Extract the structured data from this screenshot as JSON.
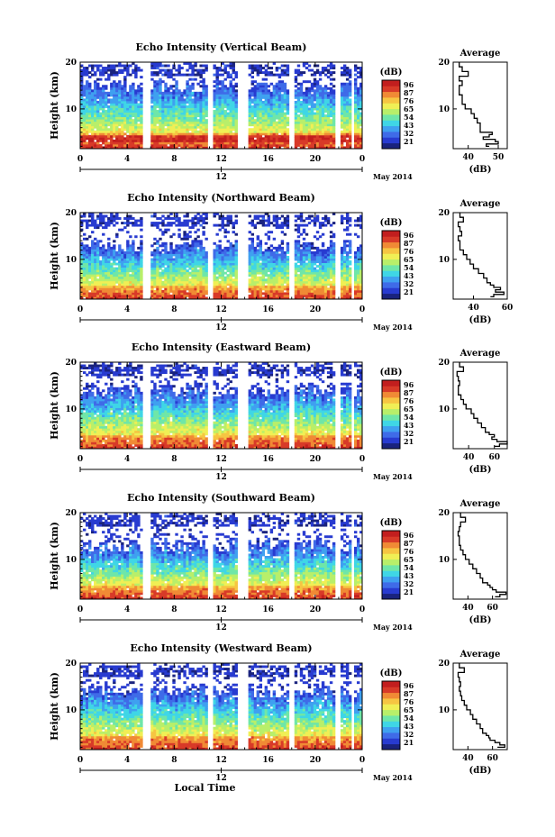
{
  "figure": {
    "xlabel": "Local Time",
    "date_label": "May 2014",
    "day_label": "12",
    "colorbar_unit": "(dB)",
    "colorbar_ticks": [
      "96",
      "87",
      "76",
      "65",
      "54",
      "43",
      "32",
      "21"
    ],
    "average_title": "Average",
    "average_xunit": "(dB)",
    "colors": {
      "scale": [
        "#1a237e",
        "#283bd0",
        "#3f6be8",
        "#3fa0f0",
        "#3fd6e6",
        "#6fe6a8",
        "#b8ef6a",
        "#f0ef55",
        "#f6c542",
        "#f08a35",
        "#d83a28",
        "#c21e1e"
      ]
    }
  },
  "chart_data": [
    {
      "type": "heatmap",
      "title": "Echo Intensity (Vertical Beam)",
      "ylabel": "Height (km)",
      "xlabel": "",
      "x_ticks": [
        "0",
        "4",
        "8",
        "12",
        "16",
        "20",
        "0"
      ],
      "y_ticks": [
        "20",
        "10"
      ],
      "xlim": [
        0,
        24
      ],
      "ylim": [
        1.5,
        20
      ],
      "gaps_hours": [
        [
          5.3,
          6.1
        ],
        [
          10.9,
          11.3
        ],
        [
          13.4,
          14.3
        ],
        [
          17.8,
          18.2
        ],
        [
          21.8,
          22.1
        ],
        [
          23.1,
          23.4
        ]
      ],
      "cloud_top_km": 15,
      "average": {
        "x_ticks": [
          "40",
          "50"
        ],
        "xlim": [
          35,
          53
        ],
        "height": [
          2,
          2.5,
          3,
          3.5,
          4,
          4.5,
          5,
          5.5,
          6,
          7,
          8,
          9,
          10,
          11,
          12,
          13,
          14,
          15,
          16,
          17,
          18,
          19,
          20
        ],
        "db": [
          47,
          46,
          50,
          49,
          45,
          47,
          48,
          44,
          44,
          44,
          43,
          42,
          41,
          39,
          38,
          38,
          37,
          37,
          38,
          37,
          40,
          38,
          37
        ]
      }
    },
    {
      "type": "heatmap",
      "title": "Echo Intensity (Northward Beam)",
      "ylabel": "Height (km)",
      "xlabel": "",
      "x_ticks": [
        "0",
        "4",
        "8",
        "12",
        "16",
        "20",
        "0"
      ],
      "y_ticks": [
        "20",
        "10"
      ],
      "xlim": [
        0,
        24
      ],
      "ylim": [
        1.5,
        20
      ],
      "gaps_hours": [
        [
          5.3,
          6.1
        ],
        [
          10.9,
          11.3
        ],
        [
          13.4,
          14.3
        ],
        [
          17.8,
          18.2
        ],
        [
          21.8,
          22.1
        ],
        [
          23.1,
          23.4
        ]
      ],
      "cloud_top_km": 13,
      "average": {
        "x_ticks": [
          "40",
          "60"
        ],
        "xlim": [
          28,
          60
        ],
        "height": [
          2,
          2.5,
          3,
          3.5,
          4,
          4.5,
          5,
          6,
          7,
          8,
          9,
          10,
          11,
          12,
          13,
          14,
          15,
          16,
          17,
          18,
          19,
          20
        ],
        "db": [
          50,
          52,
          58,
          53,
          56,
          52,
          50,
          48,
          46,
          43,
          40,
          38,
          36,
          34,
          32,
          32,
          31,
          33,
          32,
          31,
          34,
          32
        ]
      }
    },
    {
      "type": "heatmap",
      "title": "Echo Intensity (Eastward Beam)",
      "ylabel": "Height (km)",
      "xlabel": "",
      "x_ticks": [
        "0",
        "4",
        "8",
        "12",
        "16",
        "20",
        "0"
      ],
      "y_ticks": [
        "20",
        "10"
      ],
      "xlim": [
        0,
        24
      ],
      "ylim": [
        1.5,
        20
      ],
      "gaps_hours": [
        [
          5.3,
          6.1
        ],
        [
          10.9,
          11.3
        ],
        [
          13.4,
          14.3
        ],
        [
          17.8,
          18.2
        ],
        [
          21.8,
          22.1
        ],
        [
          23.1,
          23.4
        ]
      ],
      "cloud_top_km": 14,
      "average": {
        "x_ticks": [
          "40",
          "60"
        ],
        "xlim": [
          28,
          70
        ],
        "height": [
          2,
          2.5,
          3,
          3.5,
          4,
          4.5,
          5,
          6,
          7,
          8,
          9,
          10,
          11,
          12,
          13,
          14,
          15,
          16,
          17,
          18,
          19,
          20
        ],
        "db": [
          60,
          64,
          70,
          62,
          58,
          60,
          56,
          53,
          50,
          47,
          44,
          42,
          38,
          36,
          34,
          32,
          32,
          33,
          32,
          31,
          36,
          33
        ]
      }
    },
    {
      "type": "heatmap",
      "title": "Echo Intensity (Southward Beam)",
      "ylabel": "Height (km)",
      "xlabel": "",
      "x_ticks": [
        "0",
        "4",
        "8",
        "12",
        "16",
        "20",
        "0"
      ],
      "y_ticks": [
        "20",
        "10"
      ],
      "xlim": [
        0,
        24
      ],
      "ylim": [
        1.5,
        20
      ],
      "gaps_hours": [
        [
          5.3,
          6.1
        ],
        [
          10.9,
          11.3
        ],
        [
          13.4,
          14.3
        ],
        [
          17.8,
          18.2
        ],
        [
          21.8,
          22.1
        ],
        [
          23.1,
          23.4
        ]
      ],
      "cloud_top_km": 13,
      "average": {
        "x_ticks": [
          "40",
          "60"
        ],
        "xlim": [
          28,
          72
        ],
        "height": [
          2,
          2.5,
          3,
          3.5,
          4,
          4.5,
          5,
          6,
          7,
          8,
          9,
          10,
          11,
          12,
          13,
          14,
          15,
          16,
          17,
          18,
          19,
          20
        ],
        "db": [
          62,
          66,
          71,
          63,
          60,
          58,
          56,
          52,
          50,
          47,
          44,
          41,
          38,
          36,
          34,
          33,
          33,
          32,
          33,
          34,
          38,
          34
        ]
      }
    },
    {
      "type": "heatmap",
      "title": "Echo Intensity (Westward Beam)",
      "ylabel": "Height (km)",
      "xlabel": "Local Time",
      "x_ticks": [
        "0",
        "4",
        "8",
        "12",
        "16",
        "20",
        "0"
      ],
      "y_ticks": [
        "20",
        "10"
      ],
      "xlim": [
        0,
        24
      ],
      "ylim": [
        1.5,
        20
      ],
      "gaps_hours": [
        [
          5.3,
          6.1
        ],
        [
          10.9,
          11.3
        ],
        [
          13.4,
          14.3
        ],
        [
          17.8,
          18.2
        ],
        [
          21.8,
          22.1
        ],
        [
          23.1,
          23.4
        ]
      ],
      "cloud_top_km": 14,
      "average": {
        "x_ticks": [
          "40",
          "60"
        ],
        "xlim": [
          28,
          72
        ],
        "height": [
          2,
          2.5,
          3,
          3.5,
          4,
          4.5,
          5,
          6,
          7,
          8,
          9,
          10,
          11,
          12,
          13,
          14,
          15,
          16,
          17,
          18,
          19,
          20
        ],
        "db": [
          64,
          70,
          66,
          62,
          58,
          57,
          55,
          52,
          50,
          47,
          44,
          42,
          39,
          37,
          35,
          34,
          33,
          34,
          33,
          32,
          37,
          33
        ]
      }
    }
  ]
}
